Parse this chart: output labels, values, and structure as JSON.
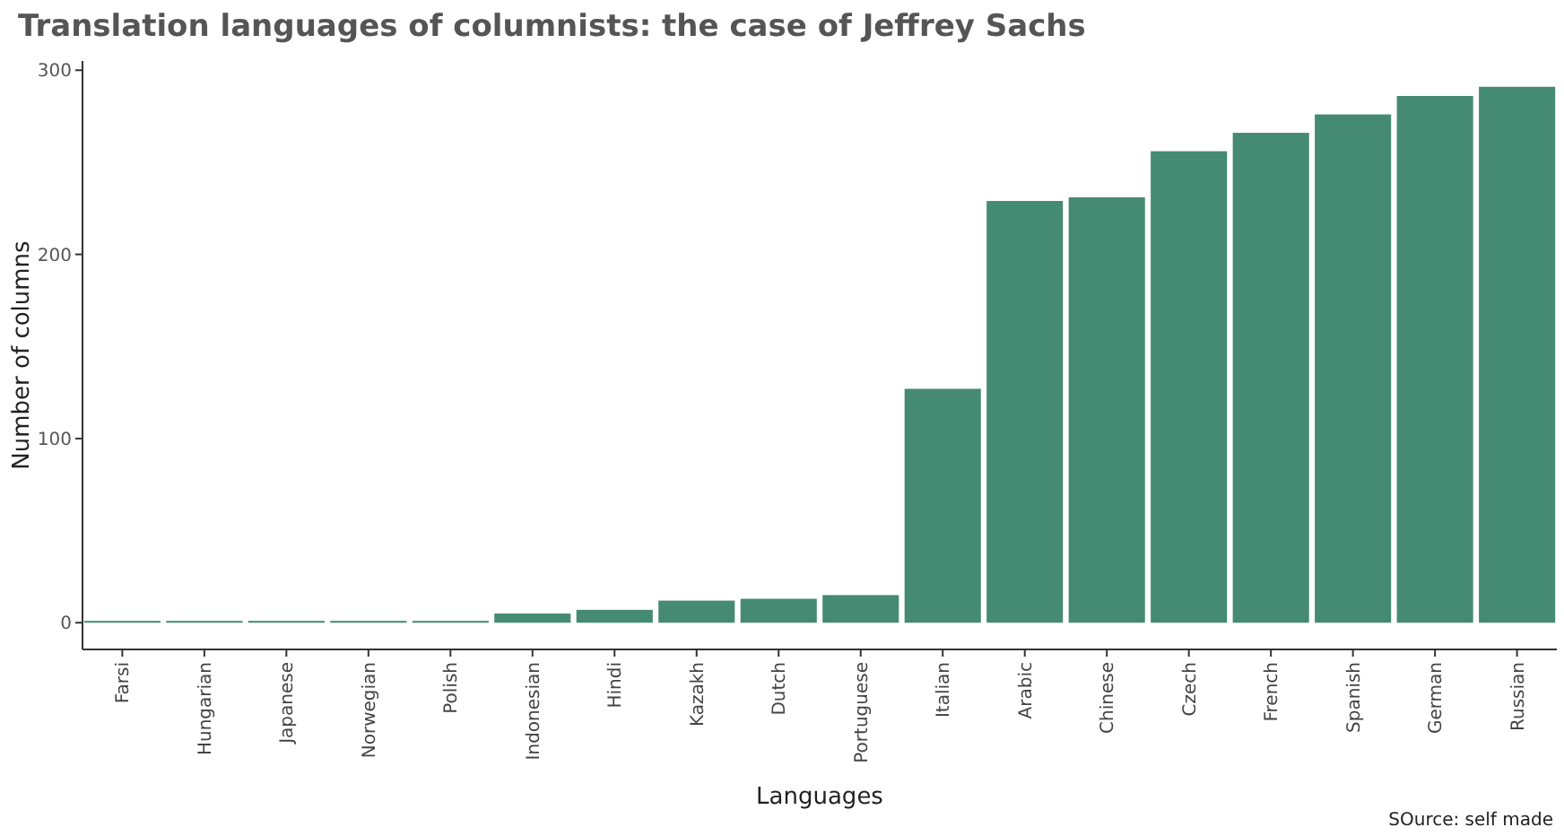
{
  "chart_data": {
    "type": "bar",
    "title": "Translation languages of columnists: the case of Jeffrey Sachs",
    "xlabel": "Languages",
    "ylabel": "Number of columns",
    "categories": [
      "Farsi",
      "Hungarian",
      "Japanese",
      "Norwegian",
      "Polish",
      "Indonesian",
      "Hindi",
      "Kazakh",
      "Dutch",
      "Portuguese",
      "Italian",
      "Arabic",
      "Chinese",
      "Czech",
      "French",
      "Spanish",
      "German",
      "Russian"
    ],
    "values": [
      1,
      1,
      1,
      1,
      1,
      5,
      7,
      12,
      13,
      15,
      127,
      229,
      231,
      256,
      266,
      276,
      286,
      291
    ],
    "color": "#458a72",
    "ylim": [
      -14.5,
      305
    ],
    "yticks": [
      0,
      100,
      200,
      300
    ],
    "grid": false,
    "annotations": [
      "SOurce: self made"
    ]
  }
}
